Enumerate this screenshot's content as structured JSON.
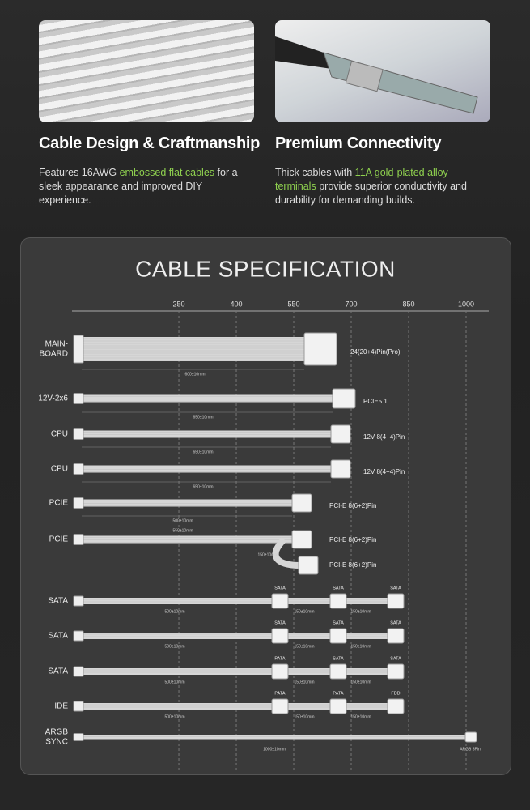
{
  "features": [
    {
      "title": "Cable Design & Craftmanship",
      "description": [
        {
          "text": "Features 16AWG"
        },
        {
          "text": "embossed flat cables",
          "highlight": true
        },
        {
          "text": "for a sleek appearance and improved DIY experience."
        }
      ]
    },
    {
      "title": "Premium Connectivity",
      "description": [
        {
          "text": "Thick cables with"
        },
        {
          "text": "11A gold-plated alloy terminals",
          "highlight": true
        },
        {
          "text": "provide superior conductivity and durability for demanding builds."
        }
      ]
    }
  ],
  "specification": {
    "title": "CABLE SPECIFICATION",
    "scale_ticks": [
      250,
      400,
      550,
      700,
      850,
      1000
    ],
    "cables": [
      {
        "label": [
          "MAIN-",
          "BOARD"
        ],
        "connectors": [
          "24(20+4)Pin(Pro)"
        ],
        "lengths": [
          "600±10mm"
        ]
      },
      {
        "label": [
          "12V-2x6"
        ],
        "connectors": [
          "PCIE5.1"
        ],
        "lengths": [
          "650±10mm"
        ]
      },
      {
        "label": [
          "CPU"
        ],
        "connectors": [
          "12V 8(4+4)Pin"
        ],
        "lengths": [
          "650±10mm"
        ]
      },
      {
        "label": [
          "CPU"
        ],
        "connectors": [
          "12V 8(4+4)Pin"
        ],
        "lengths": [
          "650±10mm"
        ]
      },
      {
        "label": [
          "PCIE"
        ],
        "connectors": [
          "PCI-E 8(6+2)Pin"
        ],
        "lengths": [
          "500±10mm"
        ]
      },
      {
        "label": [
          "PCIE"
        ],
        "connectors": [
          "PCI-E 8(6+2)Pin",
          "PCI-E 8(6+2)Pin"
        ],
        "lengths": [
          "550±10mm",
          "150±10mm"
        ]
      },
      {
        "label": [
          "SATA"
        ],
        "connectors": [
          "SATA",
          "SATA",
          "SATA"
        ],
        "lengths": [
          "500±10mm",
          "150±10mm",
          "150±10mm"
        ]
      },
      {
        "label": [
          "SATA"
        ],
        "connectors": [
          "SATA",
          "SATA",
          "SATA"
        ],
        "lengths": [
          "500±10mm",
          "150±10mm",
          "150±10mm"
        ]
      },
      {
        "label": [
          "SATA"
        ],
        "connectors": [
          "PATA",
          "SATA",
          "SATA"
        ],
        "lengths": [
          "500±10mm",
          "150±10mm",
          "150±10mm"
        ]
      },
      {
        "label": [
          "IDE"
        ],
        "connectors": [
          "PATA",
          "PATA",
          "FDD"
        ],
        "lengths": [
          "500±10mm",
          "150±10mm",
          "150±10mm"
        ]
      },
      {
        "label": [
          "ARGB",
          "SYNC"
        ],
        "connectors": [
          "ARGB 3Pin"
        ],
        "lengths": [
          "1000±10mm"
        ]
      }
    ]
  }
}
